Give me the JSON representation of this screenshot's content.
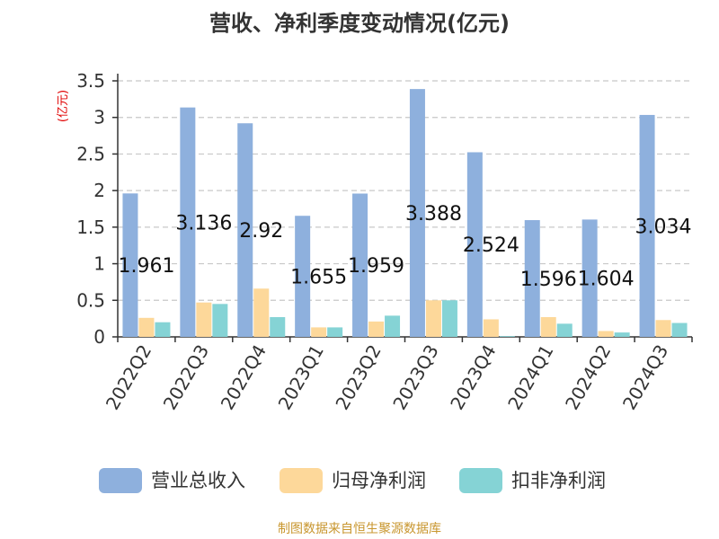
{
  "chart_data": {
    "type": "bar",
    "title": "营收、净利季度变动情况(亿元)",
    "ylabel": "(亿元)",
    "xlabel": "",
    "ylim": [
      0,
      3.5
    ],
    "yticks": [
      "0",
      "0.5",
      "1",
      "1.5",
      "2",
      "2.5",
      "3",
      "3.5"
    ],
    "grid": true,
    "legend_position": "bottom",
    "categories": [
      "2022Q2",
      "2022Q3",
      "2022Q4",
      "2023Q1",
      "2023Q2",
      "2023Q3",
      "2023Q4",
      "2024Q1",
      "2024Q2",
      "2024Q3"
    ],
    "series": [
      {
        "name": "营业总收入",
        "color": "#8eb0dd",
        "values": [
          1.961,
          3.136,
          2.92,
          1.655,
          1.959,
          3.388,
          2.524,
          1.596,
          1.604,
          3.034
        ],
        "data_labels": [
          "1.961",
          "3.136",
          "2.92",
          "1.655",
          "1.959",
          "3.388",
          "2.524",
          "1.596",
          "1.604",
          "3.034"
        ]
      },
      {
        "name": "归母净利润",
        "color": "#fdd89a",
        "values": [
          0.26,
          0.47,
          0.66,
          0.13,
          0.21,
          0.5,
          0.24,
          0.27,
          0.08,
          0.23
        ]
      },
      {
        "name": "扣非净利润",
        "color": "#85d3d5",
        "values": [
          0.2,
          0.45,
          0.27,
          0.13,
          0.29,
          0.5,
          0.01,
          0.18,
          0.06,
          0.19
        ]
      }
    ],
    "source": "制图数据来自恒生聚源数据库"
  }
}
